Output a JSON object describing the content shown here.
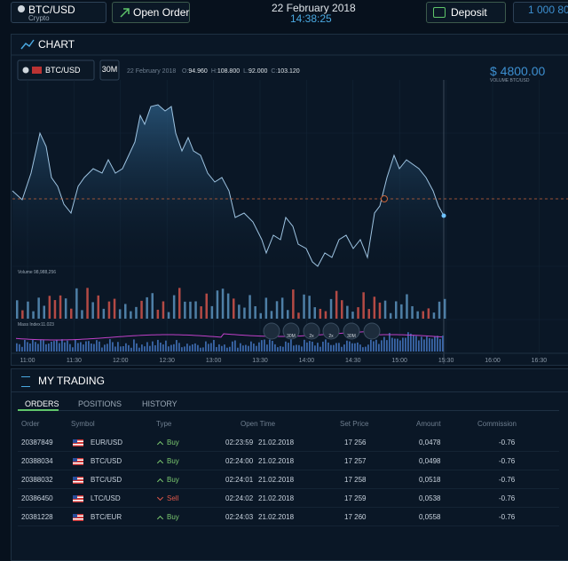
{
  "header": {
    "symbol": "BTC/USD",
    "symbol_type": "Crypto",
    "open_order": "Open Order",
    "date": "22 February 2018",
    "time": "14:38:25",
    "deposit": "Deposit",
    "balance": "1 000 80"
  },
  "chart_panel": {
    "title": "CHART",
    "symbol": "BTC/USD",
    "interval": "30M",
    "date": "22 February 2018",
    "ohlc": [
      {
        "label": "O:",
        "value": "94.960"
      },
      {
        "label": "H:",
        "value": "108.800"
      },
      {
        "label": "L:",
        "value": "92.000"
      },
      {
        "label": "C:",
        "value": "103.120"
      }
    ],
    "price": "$ 4800.00",
    "price_label": "VOLUME BTC/USD",
    "volume_label": "Volume",
    "volume_value": "98,988,256",
    "mass_label": "Mass Index",
    "mass_value": "11.023",
    "zoom": [
      "30M",
      "2x",
      "2x",
      "30M"
    ],
    "x_labels": [
      "11:00",
      "11:30",
      "12:00",
      "12:30",
      "13:00",
      "13:30",
      "14:00",
      "14:30",
      "15:00",
      "15:30",
      "16:00",
      "16:30"
    ]
  },
  "trading": {
    "title": "MY TRADING",
    "tabs": [
      "ORDERS",
      "POSITIONS",
      "HISTORY"
    ],
    "columns": [
      "Order",
      "Symbol",
      "Type",
      "Open Time",
      "Set Price",
      "Amount",
      "Commission"
    ],
    "rows": [
      [
        "20387849",
        "EUR/USD",
        "Buy",
        "02:23:59",
        "21.02.2018",
        "17 256",
        "0,0478",
        "-0.76"
      ],
      [
        "20388034",
        "BTC/USD",
        "Buy",
        "02:24:00",
        "21.02.2018",
        "17 257",
        "0,0498",
        "-0.76"
      ],
      [
        "20388032",
        "BTC/USD",
        "Buy",
        "02:24:01",
        "21.02.2018",
        "17 258",
        "0,0518",
        "-0.76"
      ],
      [
        "20386450",
        "LTC/USD",
        "Sell",
        "02:24:02",
        "21.02.2018",
        "17 259",
        "0,0538",
        "-0.76"
      ],
      [
        "20381228",
        "BTC/EUR",
        "Buy",
        "02:24:03",
        "21.02.2018",
        "17 260",
        "0,0558",
        "-0.76"
      ]
    ]
  }
}
